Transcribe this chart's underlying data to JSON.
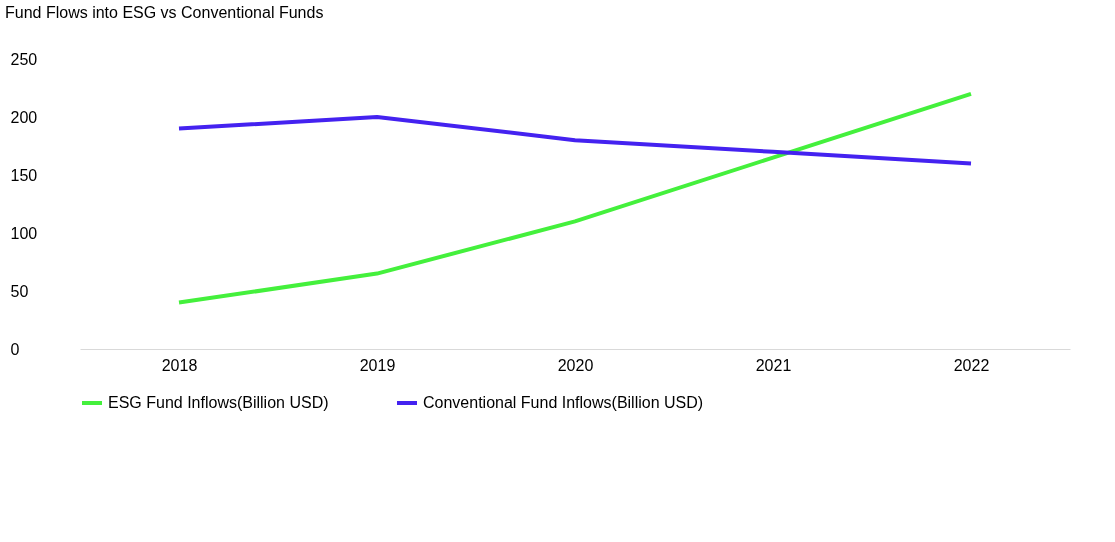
{
  "chart_data": {
    "type": "line",
    "title": "Fund Flows into ESG vs Conventional Funds",
    "categories": [
      "2018",
      "2019",
      "2020",
      "2021",
      "2022"
    ],
    "series": [
      {
        "name": "ESG Fund Inflows(Billion USD)",
        "color": "#44f03c",
        "values": [
          40,
          65,
          110,
          165,
          220
        ]
      },
      {
        "name": "Conventional Fund Inflows(Billion USD)",
        "color": "#4422f0",
        "values": [
          190,
          200,
          180,
          170,
          160
        ]
      }
    ],
    "ylim": [
      0,
      250
    ],
    "yticks": [
      0,
      50,
      100,
      150,
      200,
      250
    ],
    "grid": false,
    "legend": "bottom left",
    "marker": "none",
    "line_style": "solid"
  }
}
